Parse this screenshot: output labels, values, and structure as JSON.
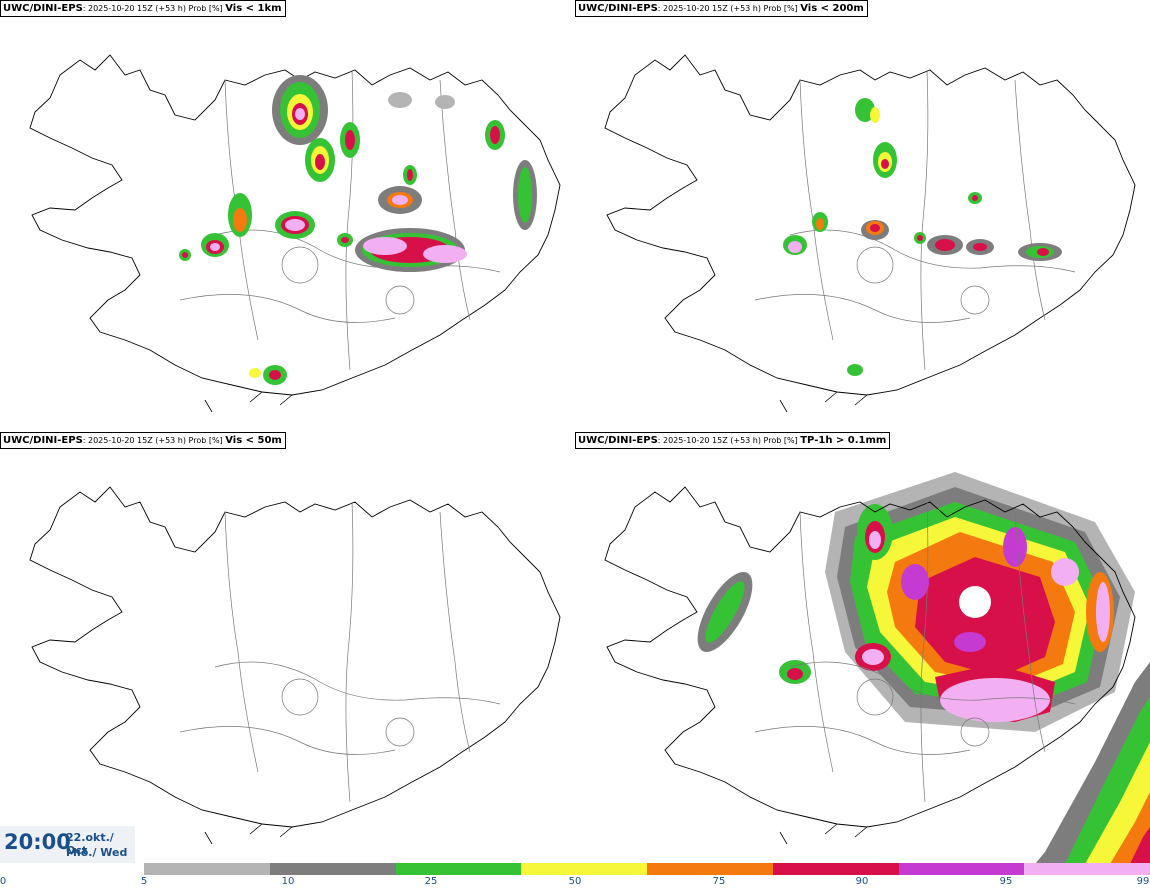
{
  "panels": [
    {
      "model": "UWC/DINI-EPS",
      "run": ": 2025-10-20 15Z (+53 h) Prob [%] ",
      "variable": "Vis < 1km"
    },
    {
      "model": "UWC/DINI-EPS",
      "run": ": 2025-10-20 15Z (+53 h) Prob [%] ",
      "variable": "Vis < 200m"
    },
    {
      "model": "UWC/DINI-EPS",
      "run": ": 2025-10-20 15Z (+53 h) Prob [%] ",
      "variable": "Vis < 50m"
    },
    {
      "model": "UWC/DINI-EPS",
      "run": ": 2025-10-20 15Z (+53 h) Prob [%] ",
      "variable": "TP-1h > 0.1mm"
    }
  ],
  "valid_time": {
    "time": "20:00",
    "date_line1": "22.okt./ Oct",
    "date_line2": "Mið./ Wed"
  },
  "legend": {
    "ticks": [
      "0",
      "5",
      "10",
      "25",
      "50",
      "75",
      "90",
      "95",
      "99"
    ],
    "colors": [
      "#b4b4b4",
      "#7d7d7d",
      "#35c335",
      "#f7f73a",
      "#f47a10",
      "#d8104a",
      "#c53ad1",
      "#f2b0f2"
    ]
  },
  "map_colors": {
    "coast": "#000000",
    "border": "#777777"
  }
}
